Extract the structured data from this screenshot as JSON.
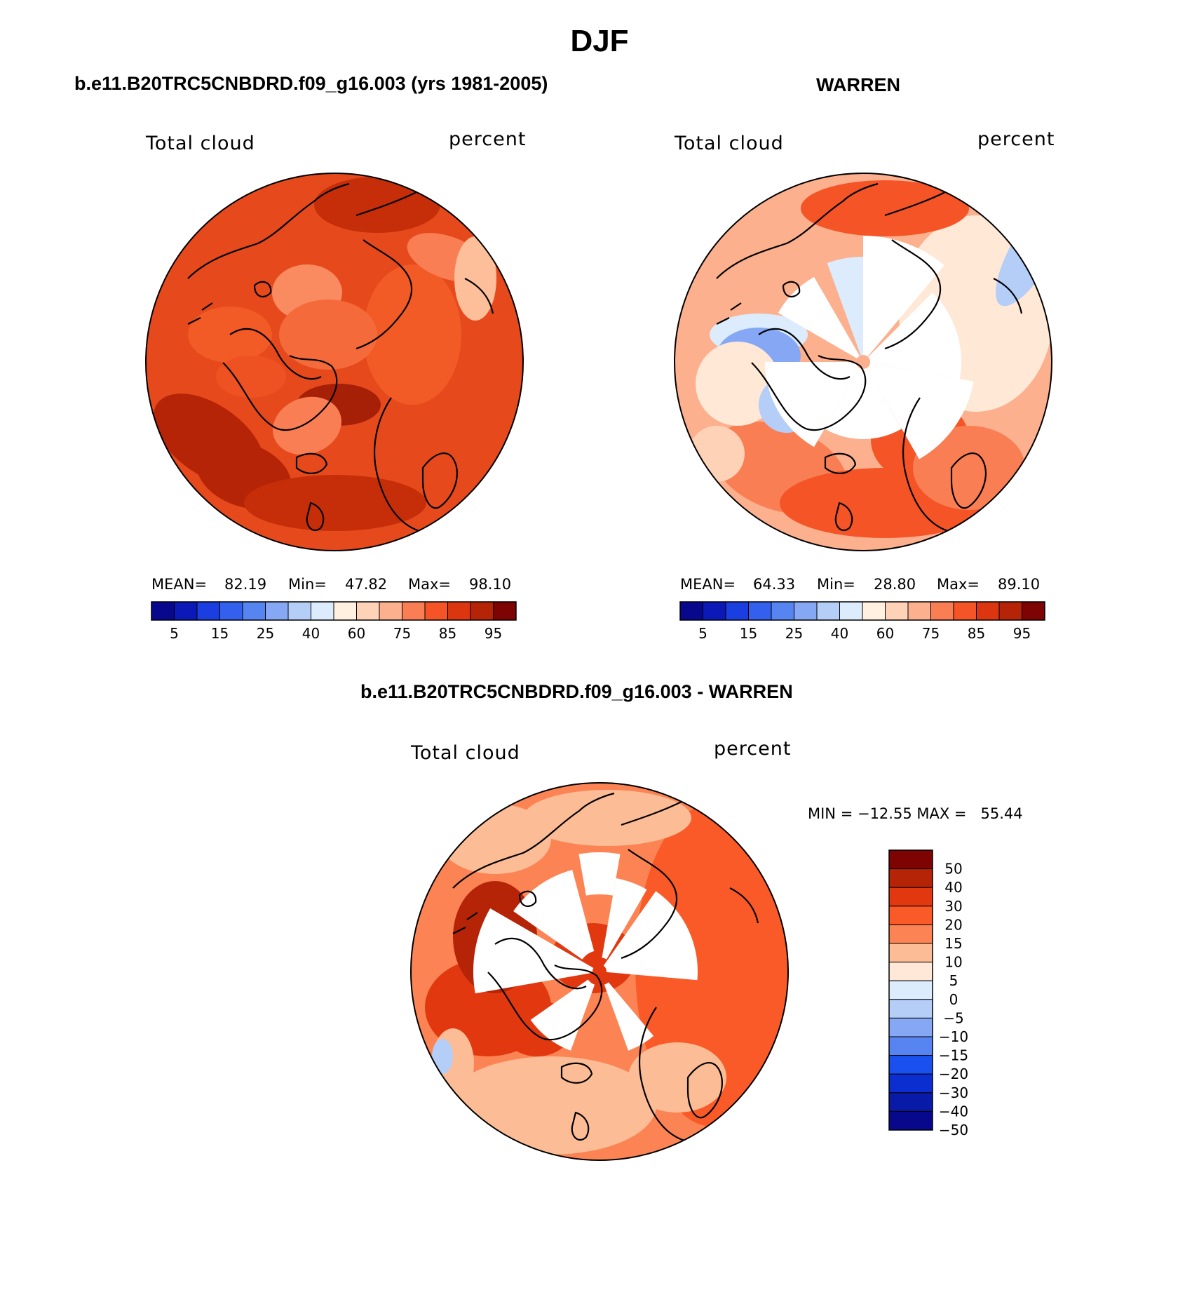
{
  "page_title": "DJF",
  "colors": {
    "cbar16": [
      "#08088c",
      "#0c18b8",
      "#1a3ee0",
      "#3460f0",
      "#5684f0",
      "#86a8f4",
      "#b4cef8",
      "#dcecfc",
      "#fff0e0",
      "#fed2b6",
      "#fcb08e",
      "#fa7e54",
      "#f45426",
      "#dc3610",
      "#b62408",
      "#7e0404"
    ],
    "cbar_diff": [
      "#7e0404",
      "#b62408",
      "#e23810",
      "#fa5a28",
      "#fc8454",
      "#fcbc96",
      "#ffe8d8",
      "#dcecfc",
      "#b4cef8",
      "#86a8f4",
      "#5684f0",
      "#1a50f0",
      "#0a2ed0",
      "#0a1aa8",
      "#08088c"
    ]
  },
  "chart_data": [
    {
      "type": "heatmap",
      "projection": "north-polar-stereographic",
      "title": "b.e11.B20TRC5CNBDRD.f09_g16.003 (yrs 1981-2005)",
      "left_label": "Total cloud",
      "right_label": "percent",
      "stats": {
        "mean_label": "MEAN=",
        "mean": "82.19",
        "min_label": "Min=",
        "min": "47.82",
        "max_label": "Max=",
        "max": "98.10"
      },
      "colorbar": {
        "levels": [
          5,
          10,
          15,
          20,
          25,
          30,
          40,
          50,
          60,
          70,
          75,
          80,
          85,
          90,
          95
        ],
        "tick_labels": [
          "5",
          "15",
          "25",
          "40",
          "60",
          "75",
          "85",
          "95"
        ]
      }
    },
    {
      "type": "heatmap",
      "projection": "north-polar-stereographic",
      "title": "WARREN",
      "left_label": "Total cloud",
      "right_label": "percent",
      "stats": {
        "mean_label": "MEAN=",
        "mean": "64.33",
        "min_label": "Min=",
        "min": "28.80",
        "max_label": "Max=",
        "max": "89.10"
      },
      "colorbar": {
        "levels": [
          5,
          10,
          15,
          20,
          25,
          30,
          40,
          50,
          60,
          70,
          75,
          80,
          85,
          90,
          95
        ],
        "tick_labels": [
          "5",
          "15",
          "25",
          "40",
          "60",
          "75",
          "85",
          "95"
        ]
      }
    },
    {
      "type": "heatmap",
      "projection": "north-polar-stereographic",
      "title": "b.e11.B20TRC5CNBDRD.f09_g16.003 - WARREN",
      "left_label": "Total cloud",
      "right_label": "percent",
      "stats_text": "MIN = −12.55 MAX =   55.44",
      "colorbar": {
        "orientation": "vertical",
        "tick_labels": [
          "50",
          "40",
          "30",
          "20",
          "15",
          "10",
          "5",
          "0",
          "−5",
          "−10",
          "−15",
          "−20",
          "−30",
          "−40",
          "−50"
        ]
      }
    }
  ]
}
